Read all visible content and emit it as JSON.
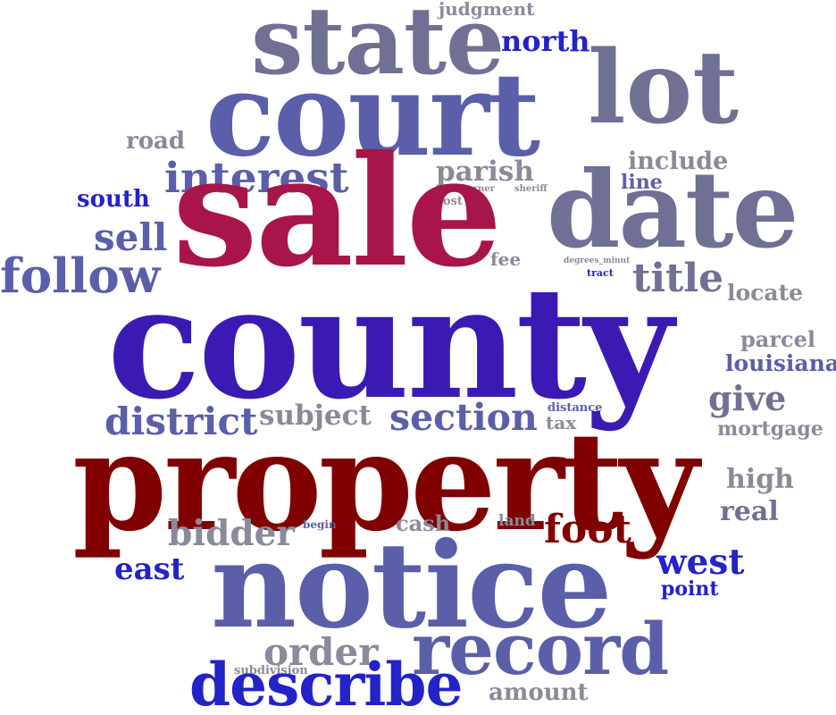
{
  "colors": {
    "crimson": "#a8154a",
    "maroon": "#800000",
    "indigo": "#3b1ab3",
    "slate_blue": "#5b5ea8",
    "steel_gray": "#6f7094",
    "gray": "#8a8a9a",
    "royal_blue": "#2323c8"
  },
  "words": [
    {
      "id": "judgment",
      "text": "judgment",
      "color": "gray"
    },
    {
      "id": "state",
      "text": "state",
      "color": "steel_gray"
    },
    {
      "id": "north",
      "text": "north",
      "color": "royal_blue"
    },
    {
      "id": "court",
      "text": "court",
      "color": "slate_blue"
    },
    {
      "id": "lot",
      "text": "lot",
      "color": "steel_gray"
    },
    {
      "id": "road",
      "text": "road",
      "color": "gray"
    },
    {
      "id": "include",
      "text": "include",
      "color": "gray"
    },
    {
      "id": "interest",
      "text": "interest",
      "color": "slate_blue"
    },
    {
      "id": "parish",
      "text": "parish",
      "color": "gray"
    },
    {
      "id": "line",
      "text": "line",
      "color": "slate_blue"
    },
    {
      "id": "south",
      "text": "south",
      "color": "royal_blue"
    },
    {
      "id": "corner",
      "text": "corner",
      "color": "gray"
    },
    {
      "id": "sheriff",
      "text": "sheriff",
      "color": "gray"
    },
    {
      "id": "cost",
      "text": "cost",
      "color": "gray"
    },
    {
      "id": "sale",
      "text": "sale",
      "color": "crimson"
    },
    {
      "id": "date",
      "text": "date",
      "color": "steel_gray"
    },
    {
      "id": "sell",
      "text": "sell",
      "color": "slate_blue"
    },
    {
      "id": "follow",
      "text": "follow",
      "color": "slate_blue"
    },
    {
      "id": "fee",
      "text": "fee",
      "color": "gray"
    },
    {
      "id": "degrees_minut",
      "text": "degrees_minut",
      "color": "gray"
    },
    {
      "id": "title",
      "text": "title",
      "color": "steel_gray"
    },
    {
      "id": "tract",
      "text": "tract",
      "color": "royal_blue"
    },
    {
      "id": "locate",
      "text": "locate",
      "color": "gray"
    },
    {
      "id": "county",
      "text": "county",
      "color": "indigo"
    },
    {
      "id": "parcel",
      "text": "parcel",
      "color": "gray"
    },
    {
      "id": "louisiana",
      "text": "louisiana",
      "color": "slate_blue"
    },
    {
      "id": "give",
      "text": "give",
      "color": "steel_gray"
    },
    {
      "id": "district",
      "text": "district",
      "color": "slate_blue"
    },
    {
      "id": "subject",
      "text": "subject",
      "color": "gray"
    },
    {
      "id": "section",
      "text": "section",
      "color": "slate_blue"
    },
    {
      "id": "distance",
      "text": "distance",
      "color": "slate_blue"
    },
    {
      "id": "tax",
      "text": "tax",
      "color": "gray"
    },
    {
      "id": "mortgage",
      "text": "mortgage",
      "color": "gray"
    },
    {
      "id": "property",
      "text": "property",
      "color": "maroon"
    },
    {
      "id": "high",
      "text": "high",
      "color": "gray"
    },
    {
      "id": "real",
      "text": "real",
      "color": "steel_gray"
    },
    {
      "id": "bidder",
      "text": "bidder",
      "color": "gray"
    },
    {
      "id": "begin",
      "text": "begin",
      "color": "slate_blue"
    },
    {
      "id": "cash",
      "text": "cash",
      "color": "gray"
    },
    {
      "id": "land",
      "text": "land",
      "color": "gray"
    },
    {
      "id": "foot",
      "text": "foot",
      "color": "maroon"
    },
    {
      "id": "east",
      "text": "east",
      "color": "royal_blue"
    },
    {
      "id": "notice",
      "text": "notice",
      "color": "slate_blue"
    },
    {
      "id": "west",
      "text": "west",
      "color": "royal_blue"
    },
    {
      "id": "point",
      "text": "point",
      "color": "royal_blue"
    },
    {
      "id": "order",
      "text": "order",
      "color": "gray"
    },
    {
      "id": "record",
      "text": "record",
      "color": "slate_blue"
    },
    {
      "id": "subdivision",
      "text": "subdivision",
      "color": "gray"
    },
    {
      "id": "describe",
      "text": "describe",
      "color": "royal_blue"
    },
    {
      "id": "amount",
      "text": "amount",
      "color": "gray"
    }
  ]
}
